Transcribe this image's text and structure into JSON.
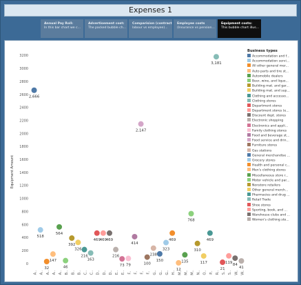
{
  "title": "Expenses 1",
  "tabs": [
    {
      "title": "Annual Pay Roll:",
      "sub": "In this bar chart we c..."
    },
    {
      "title": "Advertisement cost:",
      "sub": "The packed bubble ch..."
    },
    {
      "title": "Comparision (contract",
      "sub": "labour vs employee)..."
    },
    {
      "title": "Employee costs",
      "sub": "(Insurance vs pension..."
    },
    {
      "title": "Equipment costs:",
      "sub": "This bubble chart illus..."
    }
  ],
  "active_tab": 4,
  "chart_data": {
    "type": "scatter",
    "ylabel": "Equipment Amount",
    "yticks": [
      0,
      200,
      400,
      600,
      800,
      1000,
      1200,
      1400,
      1600,
      1800,
      2000,
      2200,
      2400,
      2600,
      2800,
      3000,
      3200
    ],
    "ylim": [
      0,
      3300
    ],
    "grid": false,
    "legend_title": "Business types",
    "legend_position": "right",
    "legend_items": [
      {
        "label": "Accommodation and f...",
        "color": "#4e79a7"
      },
      {
        "label": "Accommodation servi...",
        "color": "#a0cbe8"
      },
      {
        "label": "All other general mer...",
        "color": "#f28e2b"
      },
      {
        "label": "Auto parts and tire st...",
        "color": "#ffbe7d"
      },
      {
        "label": "Automobile dealers",
        "color": "#59a14f"
      },
      {
        "label": "Beer, wine, and liquo...",
        "color": "#8cd17d"
      },
      {
        "label": "Building mat. and gar...",
        "color": "#b6992d"
      },
      {
        "label": "Building mat. and sup...",
        "color": "#f1ce63"
      },
      {
        "label": "Clothing and accesso...",
        "color": "#499894"
      },
      {
        "label": "Clothing stores",
        "color": "#86bcb6"
      },
      {
        "label": "Department stores",
        "color": "#e15759"
      },
      {
        "label": "Department stores (e...",
        "color": "#ff9d9a"
      },
      {
        "label": "Discount dept. stores",
        "color": "#79706e"
      },
      {
        "label": "Electronic shopping",
        "color": "#bab0ac"
      },
      {
        "label": "Electronics and appli...",
        "color": "#d37295"
      },
      {
        "label": "Family clothing stores",
        "color": "#fabfd2"
      },
      {
        "label": "Food and beverage st...",
        "color": "#b07aa1"
      },
      {
        "label": "Food service and drin...",
        "color": "#d4a6c8"
      },
      {
        "label": "Furniture stores",
        "color": "#9d7660"
      },
      {
        "label": "Gas stations",
        "color": "#d7b5a6"
      },
      {
        "label": "General merchandise ...",
        "color": "#4e79a7"
      },
      {
        "label": "Grocery stores",
        "color": "#a0cbe8"
      },
      {
        "label": "Health and personal c...",
        "color": "#f28e2b"
      },
      {
        "label": "Men's clothing stores",
        "color": "#ffbe7d"
      },
      {
        "label": "Miscellaneous store r...",
        "color": "#59a14f"
      },
      {
        "label": "Motor vehicle and par...",
        "color": "#8cd17d"
      },
      {
        "label": "Nonstore retailers",
        "color": "#b6992d"
      },
      {
        "label": "Other general merch...",
        "color": "#f1ce63"
      },
      {
        "label": "Pharmacies and drug ...",
        "color": "#499894"
      },
      {
        "label": "Retail Trade",
        "color": "#86bcb6"
      },
      {
        "label": "Shoe stores",
        "color": "#e15759"
      },
      {
        "label": "Sporting, book, and ...",
        "color": "#ff9d9a"
      },
      {
        "label": "Warehouse clubs and ...",
        "color": "#79706e"
      },
      {
        "label": "Women's clothing sto...",
        "color": "#bab0ac"
      }
    ],
    "points": [
      {
        "x": 0,
        "y": 2666,
        "label": "2,666",
        "color": "#4e79a7",
        "xtick": "A.."
      },
      {
        "x": 1,
        "y": 518,
        "label": "518",
        "color": "#a0cbe8",
        "xtick": "A.."
      },
      {
        "x": 2,
        "y": 32,
        "label": "32",
        "color": "#f28e2b",
        "xtick": "A.."
      },
      {
        "x": 3,
        "y": 147,
        "label": "147",
        "color": "#ffbe7d",
        "xtick": "A.."
      },
      {
        "x": 4,
        "y": 564,
        "label": "564",
        "color": "#59a14f",
        "xtick": "A.."
      },
      {
        "x": 5,
        "y": 46,
        "label": "46",
        "color": "#8cd17d",
        "xtick": "B.."
      },
      {
        "x": 6,
        "y": 392,
        "label": "392",
        "color": "#b6992d",
        "xtick": "B.."
      },
      {
        "x": 7,
        "y": 326,
        "label": "326",
        "color": "#f1ce63",
        "xtick": "B.."
      },
      {
        "x": 8,
        "y": 216,
        "label": "216",
        "color": "#499894",
        "xtick": "C.."
      },
      {
        "x": 9,
        "y": 163,
        "label": "163",
        "color": "#86bcb6",
        "xtick": "C.."
      },
      {
        "x": 10,
        "y": 469,
        "label": "469",
        "color": "#e15759",
        "xtick": "D.."
      },
      {
        "x": 11,
        "y": 469,
        "label": "469",
        "color": "#ff9d9a",
        "xtick": "D.."
      },
      {
        "x": 12,
        "y": 469,
        "label": "469",
        "color": "#79706e",
        "xtick": "D.."
      },
      {
        "x": 13,
        "y": 216,
        "label": "216",
        "color": "#bab0ac",
        "xtick": "E.."
      },
      {
        "x": 14,
        "y": 73,
        "label": "73",
        "color": "#d37295",
        "xtick": "E.."
      },
      {
        "x": 15,
        "y": 79,
        "label": "79",
        "color": "#fabfd2",
        "xtick": "F.."
      },
      {
        "x": 16,
        "y": 414,
        "label": "414",
        "color": "#b07aa1",
        "xtick": "F.."
      },
      {
        "x": 17,
        "y": 2147,
        "label": "2,147",
        "color": "#d4a6c8",
        "xtick": "F.."
      },
      {
        "x": 18,
        "y": 100,
        "label": "100",
        "color": "#9d7660",
        "xtick": "F.."
      },
      {
        "x": 19,
        "y": 238,
        "label": "238",
        "color": "#d7b5a6",
        "xtick": "G.."
      },
      {
        "x": 20,
        "y": 150,
        "label": "150",
        "color": "#4e79a7",
        "xtick": "G.."
      },
      {
        "x": 21,
        "y": 323,
        "label": "323",
        "color": "#a0cbe8",
        "xtick": "G.."
      },
      {
        "x": 22,
        "y": 469,
        "label": "469",
        "color": "#f28e2b",
        "xtick": "H.."
      },
      {
        "x": 23,
        "y": 12,
        "label": "12",
        "color": "#ffbe7d",
        "xtick": "M.."
      },
      {
        "x": 24,
        "y": 135,
        "label": "135",
        "color": "#59a14f",
        "xtick": "M.."
      },
      {
        "x": 25,
        "y": 768,
        "label": "768",
        "color": "#8cd17d",
        "xtick": "M.."
      },
      {
        "x": 26,
        "y": 310,
        "label": "310",
        "color": "#b6992d",
        "xtick": "N.."
      },
      {
        "x": 27,
        "y": 117,
        "label": "117",
        "color": "#f1ce63",
        "xtick": "O.."
      },
      {
        "x": 28,
        "y": 469,
        "label": "469",
        "color": "#499894",
        "xtick": "P.."
      },
      {
        "x": 29,
        "y": 3181,
        "label": "3,181",
        "color": "#86bcb6",
        "xtick": "R.."
      },
      {
        "x": 30,
        "y": 21,
        "label": "21",
        "color": "#e15759",
        "xtick": "S.."
      },
      {
        "x": 31,
        "y": 119,
        "label": "119",
        "color": "#ff9d9a",
        "xtick": "S.."
      },
      {
        "x": 32,
        "y": 84,
        "label": "84",
        "color": "#79706e",
        "xtick": "W.."
      },
      {
        "x": 33,
        "y": 41,
        "label": "41",
        "color": "#bab0ac",
        "xtick": "W.."
      }
    ]
  }
}
